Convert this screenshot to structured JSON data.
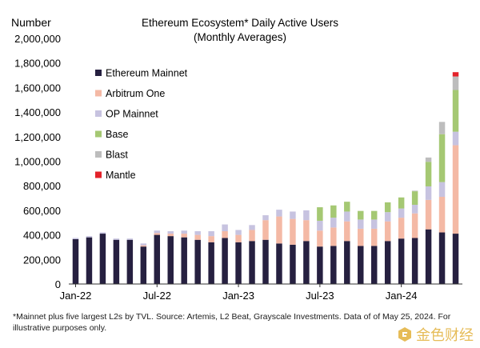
{
  "chart_data": {
    "type": "bar",
    "stacked": true,
    "title": "Ethereum Ecosystem* Daily Active Users",
    "subtitle": "(Monthly Averages)",
    "ylabel": "Number",
    "ylim": [
      0,
      2000000
    ],
    "yticks": [
      "2,000,000",
      "1,800,000",
      "1,600,000",
      "1,400,000",
      "1,200,000",
      "1,000,000",
      "800,000",
      "600,000",
      "400,000",
      "200,000",
      "0"
    ],
    "ytick_values": [
      2000000,
      1800000,
      1600000,
      1400000,
      1200000,
      1000000,
      800000,
      600000,
      400000,
      200000,
      0
    ],
    "xticks": [
      {
        "label": "Jan-22",
        "index": 0
      },
      {
        "label": "Jul-22",
        "index": 6
      },
      {
        "label": "Jan-23",
        "index": 12
      },
      {
        "label": "Jul-23",
        "index": 18
      },
      {
        "label": "Jan-24",
        "index": 24
      }
    ],
    "grid": false,
    "legend_position": "left",
    "categories": [
      "Jan-22",
      "Feb-22",
      "Mar-22",
      "Apr-22",
      "May-22",
      "Jun-22",
      "Jul-22",
      "Aug-22",
      "Sep-22",
      "Oct-22",
      "Nov-22",
      "Dec-22",
      "Jan-23",
      "Feb-23",
      "Mar-23",
      "Apr-23",
      "May-23",
      "Jun-23",
      "Jul-23",
      "Aug-23",
      "Sep-23",
      "Oct-23",
      "Nov-23",
      "Dec-23",
      "Jan-24",
      "Feb-24",
      "Mar-24",
      "Apr-24",
      "May-24"
    ],
    "series": [
      {
        "name": "Ethereum Mainnet",
        "color": "#262040",
        "values": [
          365000,
          380000,
          410000,
          360000,
          360000,
          305000,
          400000,
          390000,
          380000,
          360000,
          340000,
          375000,
          340000,
          350000,
          360000,
          330000,
          320000,
          350000,
          305000,
          310000,
          350000,
          310000,
          310000,
          350000,
          370000,
          375000,
          445000,
          420000,
          410000
        ]
      },
      {
        "name": "Arbitrum One",
        "color": "#f4b9a5",
        "values": [
          0,
          0,
          0,
          0,
          0,
          10000,
          15000,
          20000,
          30000,
          40000,
          50000,
          55000,
          60000,
          90000,
          160000,
          220000,
          210000,
          170000,
          130000,
          150000,
          160000,
          140000,
          140000,
          160000,
          170000,
          200000,
          240000,
          290000,
          720000
        ]
      },
      {
        "name": "OP Mainnet",
        "color": "#c7c3e0",
        "values": [
          10000,
          10000,
          10000,
          10000,
          10000,
          15000,
          20000,
          20000,
          25000,
          30000,
          40000,
          55000,
          40000,
          40000,
          40000,
          55000,
          60000,
          80000,
          80000,
          80000,
          80000,
          75000,
          75000,
          75000,
          75000,
          70000,
          110000,
          120000,
          110000
        ]
      },
      {
        "name": "Base",
        "color": "#a5c873",
        "values": [
          0,
          0,
          0,
          0,
          0,
          0,
          0,
          0,
          0,
          0,
          0,
          0,
          0,
          0,
          0,
          0,
          0,
          0,
          110000,
          100000,
          80000,
          70000,
          70000,
          80000,
          90000,
          110000,
          200000,
          390000,
          340000
        ]
      },
      {
        "name": "Blast",
        "color": "#bdbdbd",
        "values": [
          0,
          0,
          0,
          0,
          0,
          0,
          0,
          0,
          0,
          0,
          0,
          0,
          0,
          0,
          0,
          0,
          0,
          0,
          0,
          0,
          0,
          0,
          0,
          0,
          0,
          5000,
          35000,
          100000,
          110000
        ]
      },
      {
        "name": "Mantle",
        "color": "#e3222a",
        "values": [
          0,
          0,
          0,
          0,
          0,
          0,
          0,
          0,
          0,
          0,
          0,
          0,
          0,
          0,
          0,
          0,
          0,
          0,
          0,
          0,
          0,
          0,
          0,
          0,
          0,
          0,
          0,
          0,
          35000
        ]
      }
    ]
  },
  "footnote": "*Mainnet plus five largest L2s by TVL. Source: Artemis, L2 Beat, Grayscale Investments. Data of of May 25, 2024. For illustrative purposes only.",
  "watermark": {
    "text": "金色财经",
    "icon": "golden-logo-icon"
  }
}
